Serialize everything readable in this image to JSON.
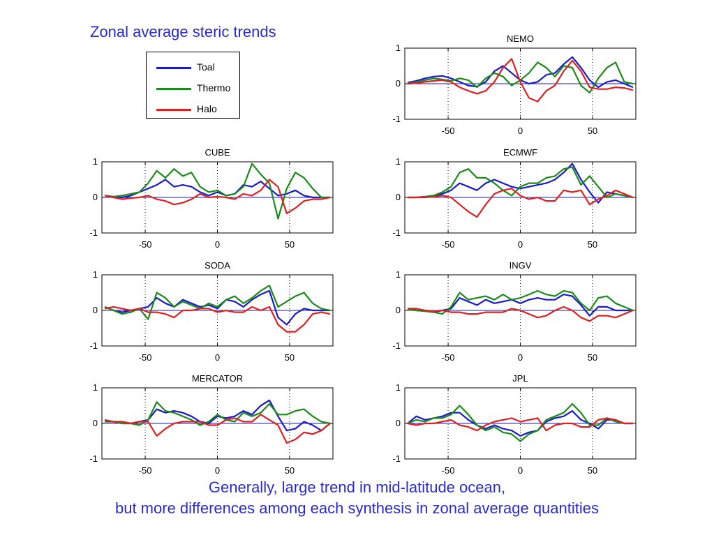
{
  "slide": {
    "title": "Zonal average steric trends",
    "caption_line1": "Generally, large trend in mid-latitude ocean,",
    "caption_line2": "but more differences among each synthesis in zonal average quantities"
  },
  "legend": [
    {
      "name": "Toal",
      "color": "#1a1ac8"
    },
    {
      "name": "Thermo",
      "color": "#1a8a1a"
    },
    {
      "name": "Halo",
      "color": "#dd2020"
    }
  ],
  "chart_data": [
    {
      "type": "line",
      "title": "NEMO",
      "x": [
        -78,
        -72,
        -66,
        -60,
        -54,
        -48,
        -42,
        -36,
        -30,
        -24,
        -18,
        -12,
        -6,
        0,
        6,
        12,
        18,
        24,
        30,
        36,
        42,
        48,
        54,
        60,
        66,
        72,
        78
      ],
      "xlim": [
        -80,
        80
      ],
      "ylim": [
        -1,
        1
      ],
      "xticks": [
        -50,
        0,
        50
      ],
      "yticks": [
        -1,
        0,
        1
      ],
      "xgrid": [
        -50,
        0,
        50
      ],
      "series": [
        {
          "name": "Toal",
          "values": [
            0.03,
            0.08,
            0.15,
            0.2,
            0.22,
            0.15,
            0.05,
            -0.05,
            -0.08,
            0.05,
            0.35,
            0.5,
            0.3,
            0.1,
            0.0,
            0.05,
            0.25,
            0.3,
            0.55,
            0.75,
            0.45,
            0.1,
            -0.1,
            0.05,
            0.1,
            0.0,
            -0.1
          ]
        },
        {
          "name": "Thermo",
          "values": [
            0.0,
            0.05,
            0.1,
            0.15,
            0.12,
            0.08,
            0.15,
            0.1,
            -0.1,
            0.15,
            0.3,
            0.2,
            -0.05,
            0.1,
            0.3,
            0.6,
            0.45,
            0.2,
            0.5,
            0.45,
            -0.05,
            -0.25,
            0.15,
            0.45,
            0.6,
            0.05,
            0.0
          ]
        },
        {
          "name": "Halo",
          "values": [
            0.0,
            0.02,
            0.05,
            0.08,
            0.1,
            0.05,
            -0.1,
            -0.2,
            -0.28,
            -0.2,
            0.05,
            0.45,
            0.7,
            0.05,
            -0.4,
            -0.5,
            -0.2,
            -0.05,
            0.35,
            0.65,
            0.35,
            -0.1,
            -0.15,
            -0.15,
            -0.1,
            -0.12,
            -0.18
          ]
        }
      ]
    },
    {
      "type": "line",
      "title": "CUBE",
      "x": [
        -78,
        -72,
        -66,
        -60,
        -54,
        -48,
        -42,
        -36,
        -30,
        -24,
        -18,
        -12,
        -6,
        0,
        6,
        12,
        18,
        24,
        30,
        36,
        42,
        48,
        54,
        60,
        66,
        72,
        78
      ],
      "xlim": [
        -80,
        80
      ],
      "ylim": [
        -1,
        1
      ],
      "xticks": [
        -50,
        0,
        50
      ],
      "yticks": [
        -1,
        0,
        1
      ],
      "xgrid": [
        -50,
        0,
        50
      ],
      "series": [
        {
          "name": "Toal",
          "values": [
            0.05,
            0.02,
            0.0,
            0.05,
            0.15,
            0.25,
            0.35,
            0.5,
            0.3,
            0.35,
            0.3,
            0.15,
            0.05,
            0.15,
            0.05,
            0.1,
            0.35,
            0.3,
            0.45,
            0.25,
            0.05,
            0.1,
            0.2,
            0.05,
            0.0,
            0.0,
            0.0
          ]
        },
        {
          "name": "Thermo",
          "values": [
            0.05,
            0.02,
            0.05,
            0.1,
            0.15,
            0.4,
            0.75,
            0.55,
            0.8,
            0.6,
            0.7,
            0.3,
            0.15,
            0.2,
            0.05,
            0.1,
            0.3,
            0.95,
            0.65,
            0.4,
            -0.6,
            0.25,
            0.7,
            0.55,
            0.25,
            0.0,
            0.0
          ]
        },
        {
          "name": "Halo",
          "values": [
            0.05,
            0.0,
            -0.05,
            -0.02,
            0.0,
            0.05,
            -0.05,
            -0.1,
            -0.2,
            -0.15,
            -0.05,
            0.1,
            0.0,
            0.02,
            0.0,
            -0.05,
            0.1,
            0.05,
            0.2,
            0.5,
            0.3,
            -0.45,
            -0.3,
            -0.1,
            -0.05,
            -0.05,
            0.0
          ]
        }
      ]
    },
    {
      "type": "line",
      "title": "ECMWF",
      "x": [
        -78,
        -72,
        -66,
        -60,
        -54,
        -48,
        -42,
        -36,
        -30,
        -24,
        -18,
        -12,
        -6,
        0,
        6,
        12,
        18,
        24,
        30,
        36,
        42,
        48,
        54,
        60,
        66,
        72,
        78
      ],
      "xlim": [
        -80,
        80
      ],
      "ylim": [
        -1,
        1
      ],
      "xticks": [
        -50,
        0,
        50
      ],
      "yticks": [
        -1,
        0,
        1
      ],
      "xgrid": [
        -50,
        0,
        50
      ],
      "series": [
        {
          "name": "Toal",
          "values": [
            0.0,
            0.0,
            0.02,
            0.05,
            0.1,
            0.2,
            0.4,
            0.3,
            0.2,
            0.4,
            0.5,
            0.4,
            0.3,
            0.25,
            0.3,
            0.35,
            0.4,
            0.5,
            0.7,
            0.95,
            0.5,
            0.15,
            -0.15,
            0.15,
            0.1,
            0.05,
            0.0
          ]
        },
        {
          "name": "Thermo",
          "values": [
            0.0,
            0.0,
            0.02,
            0.05,
            0.15,
            0.3,
            0.7,
            0.8,
            0.55,
            0.55,
            0.4,
            0.2,
            0.05,
            0.3,
            0.4,
            0.4,
            0.55,
            0.6,
            0.8,
            0.85,
            0.35,
            0.6,
            0.3,
            0.0,
            0.1,
            0.05,
            0.0
          ]
        },
        {
          "name": "Halo",
          "values": [
            0.0,
            0.0,
            0.0,
            0.02,
            0.05,
            0.0,
            -0.2,
            -0.4,
            -0.55,
            -0.2,
            0.1,
            0.2,
            0.25,
            0.05,
            -0.05,
            0.0,
            -0.1,
            -0.1,
            0.2,
            0.15,
            0.2,
            -0.2,
            -0.05,
            0.05,
            0.2,
            0.1,
            0.0
          ]
        }
      ]
    },
    {
      "type": "line",
      "title": "SODA",
      "x": [
        -78,
        -72,
        -66,
        -60,
        -54,
        -48,
        -42,
        -36,
        -30,
        -24,
        -18,
        -12,
        -6,
        0,
        6,
        12,
        18,
        24,
        30,
        36,
        42,
        48,
        54,
        60,
        66,
        72,
        78
      ],
      "xlim": [
        -80,
        80
      ],
      "ylim": [
        -1,
        1
      ],
      "xticks": [
        -50,
        0,
        50
      ],
      "yticks": [
        -1,
        0,
        1
      ],
      "xgrid": [
        -50,
        0,
        50
      ],
      "series": [
        {
          "name": "Toal",
          "values": [
            0.1,
            0.0,
            -0.05,
            0.0,
            0.05,
            0.1,
            0.35,
            0.2,
            0.1,
            0.3,
            0.2,
            0.1,
            0.15,
            0.05,
            0.3,
            0.25,
            0.1,
            0.3,
            0.45,
            0.55,
            -0.2,
            -0.4,
            -0.1,
            0.05,
            0.0,
            0.0,
            0.0
          ]
        },
        {
          "name": "Thermo",
          "values": [
            0.1,
            0.0,
            -0.1,
            -0.05,
            0.05,
            -0.25,
            0.5,
            0.35,
            0.1,
            0.25,
            0.15,
            0.05,
            0.2,
            0.1,
            0.3,
            0.4,
            0.2,
            0.35,
            0.55,
            0.7,
            0.1,
            0.25,
            0.4,
            0.5,
            0.2,
            0.05,
            0.0
          ]
        },
        {
          "name": "Halo",
          "values": [
            0.05,
            0.1,
            0.05,
            0.0,
            0.05,
            -0.05,
            -0.05,
            -0.1,
            -0.2,
            0.0,
            0.0,
            0.05,
            0.05,
            -0.05,
            0.0,
            -0.05,
            -0.05,
            0.1,
            0.0,
            0.1,
            -0.4,
            -0.6,
            -0.6,
            -0.4,
            -0.1,
            -0.05,
            -0.1
          ]
        }
      ]
    },
    {
      "type": "line",
      "title": "INGV",
      "x": [
        -78,
        -72,
        -66,
        -60,
        -54,
        -48,
        -42,
        -36,
        -30,
        -24,
        -18,
        -12,
        -6,
        0,
        6,
        12,
        18,
        24,
        30,
        36,
        42,
        48,
        54,
        60,
        66,
        72,
        78
      ],
      "xlim": [
        -80,
        80
      ],
      "ylim": [
        -1,
        1
      ],
      "xticks": [
        -50,
        0,
        50
      ],
      "yticks": [
        -1,
        0,
        1
      ],
      "xgrid": [
        -50,
        0,
        50
      ],
      "series": [
        {
          "name": "Toal",
          "values": [
            0.05,
            0.0,
            -0.02,
            -0.05,
            0.0,
            0.05,
            0.35,
            0.25,
            0.15,
            0.3,
            0.2,
            0.25,
            0.3,
            0.2,
            0.3,
            0.35,
            0.3,
            0.3,
            0.45,
            0.4,
            0.15,
            -0.15,
            0.1,
            0.1,
            0.0,
            0.0,
            0.0
          ]
        },
        {
          "name": "Thermo",
          "values": [
            0.02,
            0.0,
            -0.02,
            -0.05,
            -0.1,
            0.1,
            0.5,
            0.3,
            0.35,
            0.4,
            0.3,
            0.45,
            0.3,
            0.35,
            0.45,
            0.55,
            0.45,
            0.4,
            0.55,
            0.5,
            0.2,
            0.0,
            0.35,
            0.4,
            0.2,
            0.1,
            0.0
          ]
        },
        {
          "name": "Halo",
          "values": [
            0.05,
            0.05,
            0.0,
            -0.02,
            0.0,
            -0.05,
            -0.05,
            -0.1,
            -0.1,
            -0.05,
            -0.05,
            -0.05,
            0.05,
            0.0,
            -0.1,
            -0.2,
            -0.15,
            0.0,
            0.1,
            0.0,
            -0.2,
            -0.3,
            -0.15,
            -0.15,
            -0.2,
            -0.1,
            0.0
          ]
        }
      ]
    },
    {
      "type": "line",
      "title": "MERCATOR",
      "x": [
        -78,
        -72,
        -66,
        -60,
        -54,
        -48,
        -42,
        -36,
        -30,
        -24,
        -18,
        -12,
        -6,
        0,
        6,
        12,
        18,
        24,
        30,
        36,
        42,
        48,
        54,
        60,
        66,
        72,
        78
      ],
      "xlim": [
        -80,
        80
      ],
      "ylim": [
        -1,
        1
      ],
      "xticks": [
        -50,
        0,
        50
      ],
      "yticks": [
        -1,
        0,
        1
      ],
      "xgrid": [
        -50,
        0,
        50
      ],
      "series": [
        {
          "name": "Toal",
          "values": [
            0.05,
            0.05,
            0.0,
            0.0,
            0.05,
            0.1,
            0.4,
            0.3,
            0.35,
            0.3,
            0.2,
            0.05,
            0.0,
            0.2,
            0.15,
            0.2,
            0.35,
            0.25,
            0.5,
            0.65,
            0.2,
            -0.2,
            -0.15,
            0.05,
            -0.05,
            -0.2,
            0.0
          ]
        },
        {
          "name": "Thermo",
          "values": [
            0.05,
            0.05,
            0.0,
            0.0,
            -0.05,
            0.1,
            0.6,
            0.35,
            0.3,
            0.2,
            0.1,
            -0.05,
            0.05,
            0.25,
            0.1,
            0.05,
            0.3,
            0.2,
            0.3,
            0.55,
            0.25,
            0.25,
            0.35,
            0.4,
            0.2,
            0.05,
            0.0
          ]
        },
        {
          "name": "Halo",
          "values": [
            0.1,
            0.05,
            0.05,
            0.0,
            0.05,
            0.05,
            -0.35,
            -0.15,
            0.0,
            0.05,
            0.05,
            0.05,
            -0.05,
            -0.05,
            0.1,
            0.15,
            0.05,
            0.05,
            0.25,
            0.1,
            -0.05,
            -0.55,
            -0.45,
            -0.25,
            -0.3,
            -0.2,
            0.0
          ]
        }
      ]
    },
    {
      "type": "line",
      "title": "JPL",
      "x": [
        -78,
        -72,
        -66,
        -60,
        -54,
        -48,
        -42,
        -36,
        -30,
        -24,
        -18,
        -12,
        -6,
        0,
        6,
        12,
        18,
        24,
        30,
        36,
        42,
        48,
        54,
        60,
        66,
        72,
        78
      ],
      "xlim": [
        -80,
        80
      ],
      "ylim": [
        -1,
        1
      ],
      "xticks": [
        -50,
        0,
        50
      ],
      "yticks": [
        -1,
        0,
        1
      ],
      "xgrid": [
        -50,
        0,
        50
      ],
      "series": [
        {
          "name": "Toal",
          "values": [
            0.0,
            0.2,
            0.1,
            0.15,
            0.2,
            0.3,
            0.3,
            0.1,
            -0.05,
            -0.15,
            -0.05,
            -0.15,
            -0.2,
            -0.35,
            -0.25,
            -0.2,
            0.05,
            0.15,
            0.2,
            0.35,
            0.1,
            0.0,
            -0.15,
            0.1,
            0.1,
            0.0,
            0.0
          ]
        },
        {
          "name": "Thermo",
          "values": [
            0.0,
            0.1,
            0.05,
            0.15,
            0.15,
            0.25,
            0.5,
            0.25,
            -0.05,
            -0.2,
            -0.1,
            -0.25,
            -0.3,
            -0.5,
            -0.3,
            -0.2,
            0.1,
            0.2,
            0.3,
            0.55,
            0.3,
            -0.05,
            -0.05,
            0.15,
            0.05,
            0.0,
            0.0
          ]
        },
        {
          "name": "Halo",
          "values": [
            0.0,
            -0.05,
            0.0,
            0.0,
            0.05,
            0.1,
            -0.05,
            -0.1,
            -0.2,
            -0.05,
            0.05,
            0.1,
            0.15,
            0.05,
            0.1,
            0.15,
            -0.2,
            -0.05,
            0.0,
            0.0,
            -0.1,
            -0.1,
            0.1,
            0.15,
            0.1,
            0.0,
            0.0
          ]
        }
      ]
    }
  ]
}
